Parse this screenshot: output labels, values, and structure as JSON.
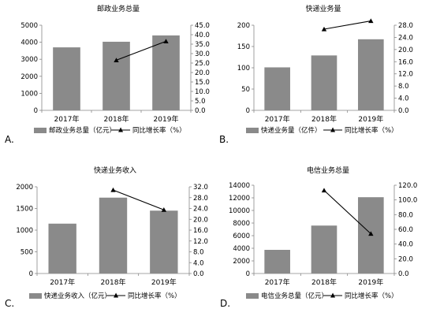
{
  "chart_data": [
    {
      "id": "A",
      "type": "bar",
      "panel_label": "A.",
      "title": "邮政业务总量",
      "categories": [
        "2017年",
        "2018年",
        "2019年"
      ],
      "series": [
        {
          "name": "邮政业务总量（亿元）",
          "type": "bar",
          "axis": "left",
          "values": [
            3700,
            4030,
            4400
          ]
        },
        {
          "name": "同比增长率（%）",
          "type": "line",
          "axis": "right",
          "values": [
            null,
            26.5,
            36.5
          ]
        }
      ],
      "ylim": [
        0,
        5000
      ],
      "yticks": [
        "0",
        "1000",
        "2000",
        "3000",
        "4000",
        "5000"
      ],
      "y2lim": [
        0,
        45
      ],
      "y2ticks": [
        "0.0",
        "5.0",
        "10.0",
        "15.0",
        "20.0",
        "25.0",
        "30.0",
        "35.0",
        "40.0",
        "45.0"
      ],
      "bar_color": "#8a8a8a",
      "line_color": "#000000",
      "legend_position": "bottom"
    },
    {
      "id": "B",
      "type": "bar",
      "panel_label": "B.",
      "title": "快递业务量",
      "categories": [
        "2017年",
        "2018年",
        "2019年"
      ],
      "series": [
        {
          "name": "快递业务量（亿件）",
          "type": "bar",
          "axis": "left",
          "values": [
            101,
            129,
            167
          ]
        },
        {
          "name": "同比增长率（%）",
          "type": "line",
          "axis": "right",
          "values": [
            null,
            26.7,
            29.4
          ]
        }
      ],
      "ylim": [
        0,
        200
      ],
      "yticks": [
        "0",
        "50",
        "100",
        "150",
        "200"
      ],
      "y2lim": [
        0,
        28
      ],
      "y2ticks": [
        "0.0",
        "4.0",
        "8.0",
        "12.0",
        "16.0",
        "20.0",
        "24.0",
        "28.0"
      ],
      "bar_color": "#8a8a8a",
      "line_color": "#000000",
      "legend_position": "bottom"
    },
    {
      "id": "C",
      "type": "bar",
      "panel_label": "C.",
      "title": "快递业务收入",
      "categories": [
        "2017年",
        "2018年",
        "2019年"
      ],
      "series": [
        {
          "name": "快递业务收入（亿元）",
          "type": "bar",
          "axis": "left",
          "values": [
            1150,
            1750,
            1450
          ]
        },
        {
          "name": "同比增长率（%）",
          "type": "line",
          "axis": "right",
          "values": [
            null,
            30.8,
            23.5
          ]
        }
      ],
      "ylim": [
        0,
        2000
      ],
      "yticks": [
        "0",
        "500",
        "1000",
        "1500",
        "2000"
      ],
      "y2lim": [
        0,
        32
      ],
      "y2ticks": [
        "0.0",
        "4.0",
        "8.0",
        "12.0",
        "16.0",
        "20.0",
        "24.0",
        "28.0",
        "32.0"
      ],
      "bar_color": "#8a8a8a",
      "line_color": "#000000",
      "legend_position": "bottom"
    },
    {
      "id": "D",
      "type": "bar",
      "panel_label": "D.",
      "title": "电信业务总量",
      "categories": [
        "2017年",
        "2018年",
        "2019年"
      ],
      "series": [
        {
          "name": "电信业务总量（亿元）",
          "type": "bar",
          "axis": "left",
          "values": [
            3750,
            7600,
            12100
          ]
        },
        {
          "name": "同比增长率（%）",
          "type": "line",
          "axis": "right",
          "values": [
            null,
            113.0,
            54.0
          ]
        }
      ],
      "ylim": [
        0,
        14000
      ],
      "yticks": [
        "0",
        "2000",
        "4000",
        "6000",
        "8000",
        "10000",
        "12000",
        "14000"
      ],
      "y2lim": [
        0,
        120
      ],
      "y2ticks": [
        "0.0",
        "20.0",
        "40.0",
        "60.0",
        "80.0",
        "100.0",
        "120.0"
      ],
      "bar_color": "#8a8a8a",
      "line_color": "#000000",
      "legend_position": "bottom"
    }
  ]
}
